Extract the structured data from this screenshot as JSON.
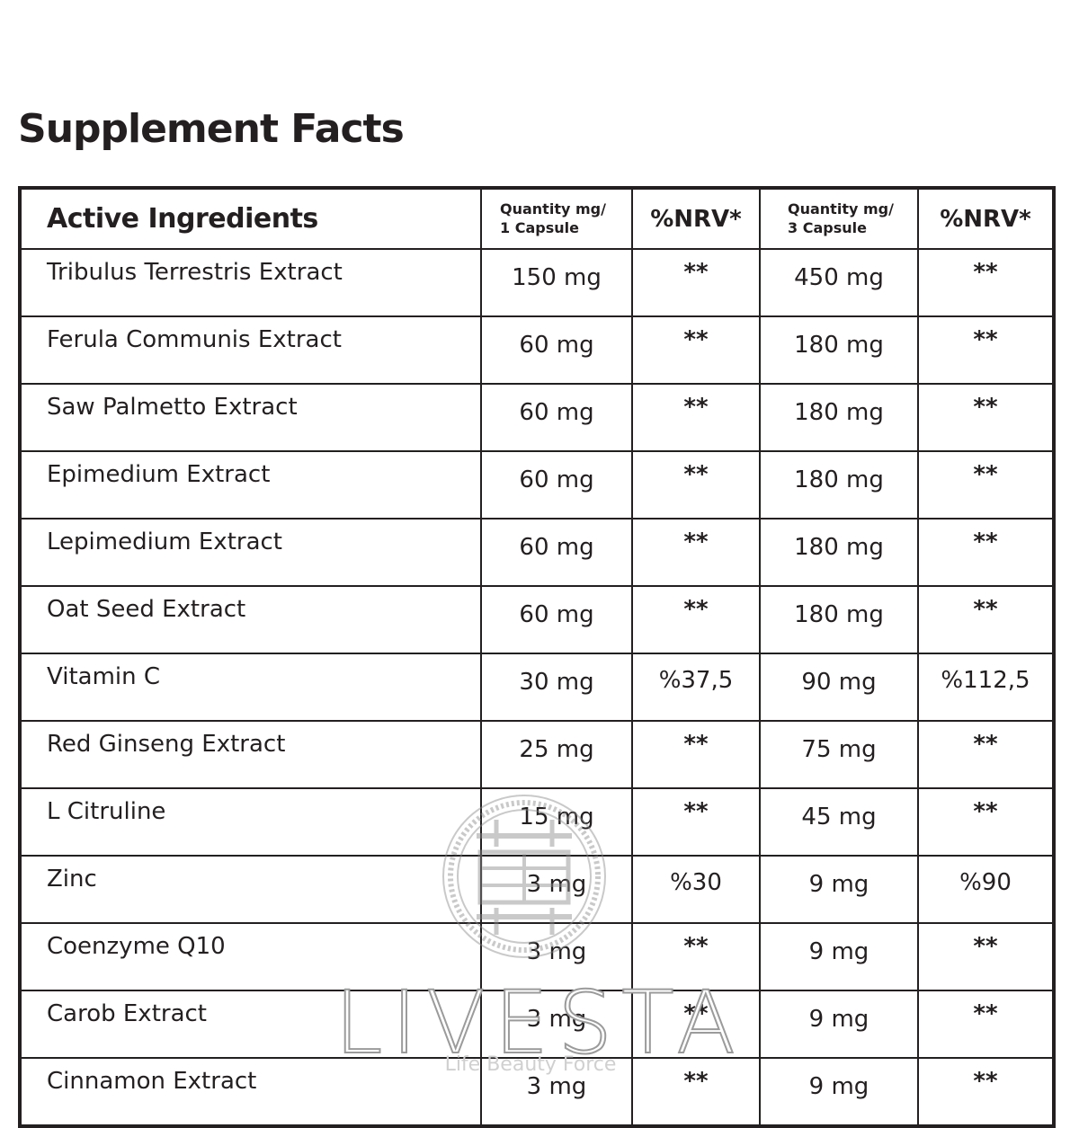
{
  "title": "Supplement Facts",
  "table": {
    "headers": {
      "ingredient": "Active Ingredients",
      "qty1_line1": "Quantity mg/",
      "qty1_line2": "1 Capsule",
      "nrv1": "%NRV*",
      "qty3_line1": "Quantity mg/",
      "qty3_line2": "3 Capsule",
      "nrv3": "%NRV*"
    },
    "rows": [
      {
        "name": "Tribulus Terrestris Extract",
        "qty1": "150 mg",
        "nrv1": "**",
        "qty3": "450 mg",
        "nrv3": "**"
      },
      {
        "name": "Ferula Communis Extract",
        "qty1": "60 mg",
        "nrv1": "**",
        "qty3": "180 mg",
        "nrv3": "**"
      },
      {
        "name": "Saw Palmetto Extract",
        "qty1": "60 mg",
        "nrv1": "**",
        "qty3": "180 mg",
        "nrv3": "**"
      },
      {
        "name": "Epimedium Extract",
        "qty1": "60 mg",
        "nrv1": "**",
        "qty3": "180 mg",
        "nrv3": "**"
      },
      {
        "name": "Lepimedium Extract",
        "qty1": "60 mg",
        "nrv1": "**",
        "qty3": "180 mg",
        "nrv3": "**"
      },
      {
        "name": "Oat Seed Extract",
        "qty1": "60 mg",
        "nrv1": "**",
        "qty3": "180 mg",
        "nrv3": "**"
      },
      {
        "name": "Vitamin C",
        "qty1": "30 mg",
        "nrv1": "%37,5",
        "qty3": "90 mg",
        "nrv3": "%112,5"
      },
      {
        "name": "Red Ginseng Extract",
        "qty1": "25 mg",
        "nrv1": "**",
        "qty3": "75 mg",
        "nrv3": "**"
      },
      {
        "name": "L Citruline",
        "qty1": "15 mg",
        "nrv1": "**",
        "qty3": "45 mg",
        "nrv3": "**"
      },
      {
        "name": "Zinc",
        "qty1": "3 mg",
        "nrv1": "%30",
        "qty3": "9 mg",
        "nrv3": "%90"
      },
      {
        "name": "Coenzyme Q10",
        "qty1": "3 mg",
        "nrv1": "**",
        "qty3": "9 mg",
        "nrv3": "**"
      },
      {
        "name": "Carob Extract",
        "qty1": "3 mg",
        "nrv1": "**",
        "qty3": "9 mg",
        "nrv3": "**"
      },
      {
        "name": "Cinnamon Extract",
        "qty1": "3 mg",
        "nrv1": "**",
        "qty3": "9 mg",
        "nrv3": "**"
      }
    ]
  },
  "brand": {
    "name": "LIVESTA",
    "tagline": "Life Beauty Force",
    "logo_icon": "seal-logo-icon",
    "logo_color": "#9b9b9b"
  }
}
